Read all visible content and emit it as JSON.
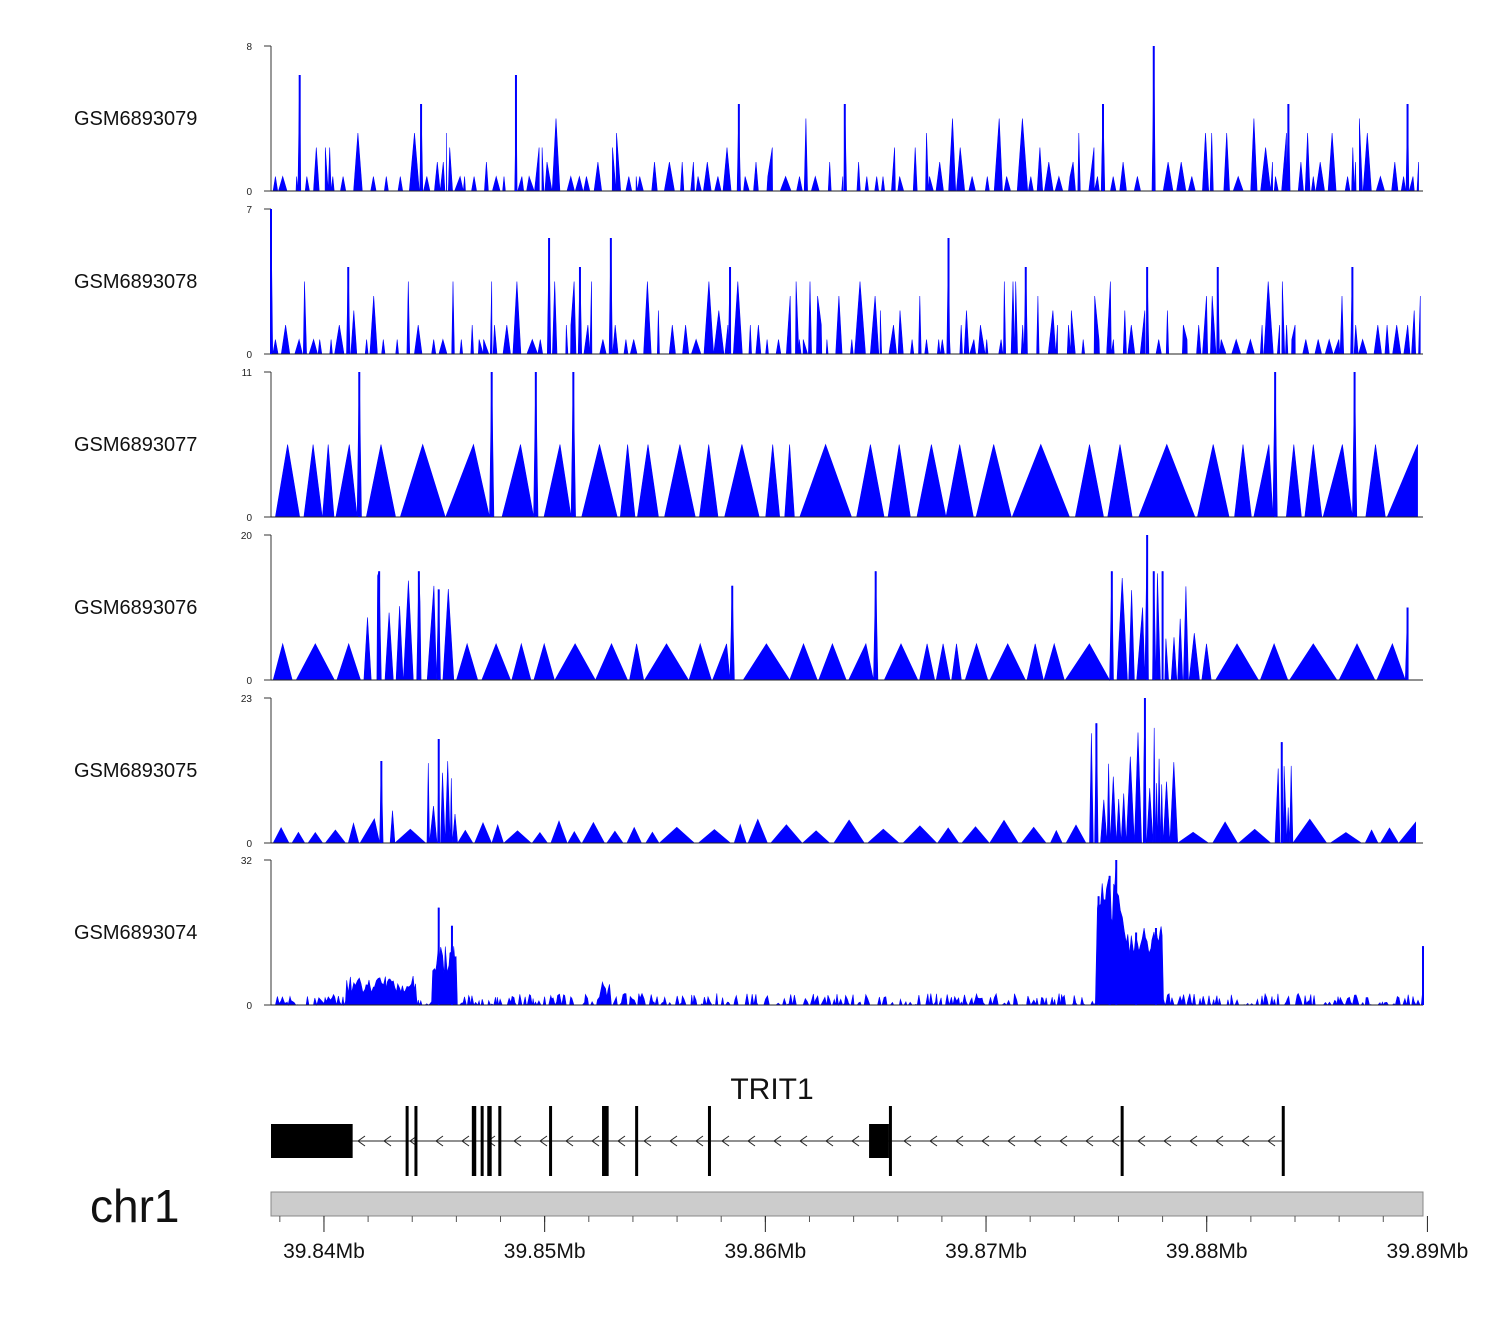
{
  "chart_data": {
    "type": "area",
    "title": "",
    "chromosome": "chr1",
    "x_range_mb": [
      39.8376,
      39.8898
    ],
    "x_ticks": [
      {
        "value": 39.84,
        "label": "39.84Mb"
      },
      {
        "value": 39.85,
        "label": "39.85Mb"
      },
      {
        "value": 39.86,
        "label": "39.86Mb"
      },
      {
        "value": 39.87,
        "label": "39.87Mb"
      },
      {
        "value": 39.88,
        "label": "39.88Mb"
      },
      {
        "value": 39.89,
        "label": "39.89Mb"
      }
    ],
    "color": "#0000ff",
    "tracks": [
      {
        "name": "GSM6893079",
        "ymax": 8,
        "ymin_label": "0",
        "ymax_label": "8",
        "style": "dense-spiky",
        "seed": 11,
        "peaks": [
          [
            39.8389,
            6.4
          ],
          [
            39.8444,
            4.8
          ],
          [
            39.8487,
            6.4
          ],
          [
            39.8588,
            4.8
          ],
          [
            39.8636,
            4.8
          ],
          [
            39.8753,
            4.8
          ],
          [
            39.8776,
            8.0
          ],
          [
            39.8837,
            4.8
          ],
          [
            39.8891,
            4.8
          ]
        ]
      },
      {
        "name": "GSM6893078",
        "ymax": 7,
        "ymin_label": "0",
        "ymax_label": "7",
        "style": "dense-spiky",
        "seed": 23,
        "peaks": [
          [
            39.8376,
            7.0
          ],
          [
            39.8411,
            4.2
          ],
          [
            39.8502,
            5.6
          ],
          [
            39.8516,
            4.2
          ],
          [
            39.853,
            5.6
          ],
          [
            39.8584,
            4.2
          ],
          [
            39.8683,
            5.6
          ],
          [
            39.8718,
            4.2
          ],
          [
            39.8773,
            4.2
          ],
          [
            39.8805,
            4.2
          ],
          [
            39.8866,
            4.2
          ]
        ]
      },
      {
        "name": "GSM6893077",
        "ymax": 11,
        "ymin_label": "0",
        "ymax_label": "11",
        "style": "sparse-triangles",
        "seed": 37,
        "peaks": [
          [
            39.8416,
            11.0
          ],
          [
            39.8476,
            11.0
          ],
          [
            39.8496,
            11.0
          ],
          [
            39.8513,
            11.0
          ],
          [
            39.8831,
            11.0
          ],
          [
            39.8867,
            11.0
          ]
        ]
      },
      {
        "name": "GSM6893076",
        "ymax": 20,
        "ymin_label": "0",
        "ymax_label": "20",
        "style": "medium-triangles",
        "seed": 51,
        "peaks": [
          [
            39.8425,
            15.0
          ],
          [
            39.8443,
            15.0
          ],
          [
            39.8452,
            12.5
          ],
          [
            39.8585,
            13.0
          ],
          [
            39.865,
            15.0
          ],
          [
            39.8757,
            15.0
          ],
          [
            39.8773,
            20.0
          ],
          [
            39.8776,
            15.0
          ],
          [
            39.878,
            15.0
          ],
          [
            39.8891,
            10.0
          ]
        ]
      },
      {
        "name": "GSM6893075",
        "ymax": 23,
        "ymin_label": "0",
        "ymax_label": "23",
        "style": "clustered",
        "seed": 67,
        "peaks": [
          [
            39.8426,
            13.0
          ],
          [
            39.8452,
            16.5
          ],
          [
            39.875,
            19.0
          ],
          [
            39.8772,
            23.0
          ],
          [
            39.8834,
            16.0
          ]
        ]
      },
      {
        "name": "GSM6893074",
        "ymax": 32,
        "ymin_label": "0",
        "ymax_label": "32",
        "style": "continuous",
        "seed": 83,
        "peaks": [
          [
            39.8452,
            21.5
          ],
          [
            39.8458,
            17.5
          ],
          [
            39.8751,
            24.0
          ],
          [
            39.8756,
            28.5
          ],
          [
            39.8759,
            32.0
          ],
          [
            39.8768,
            16.0
          ],
          [
            39.8777,
            17.0
          ],
          [
            39.8898,
            13.0
          ]
        ]
      }
    ],
    "gene": {
      "name": "TRIT1",
      "strand": "-",
      "start_mb": 39.8376,
      "end_mb": 39.8835,
      "exons_mb": [
        [
          39.8376,
          39.8413,
          "utr"
        ],
        [
          39.8437,
          39.8438,
          "cds"
        ],
        [
          39.8441,
          39.8442,
          "cds"
        ],
        [
          39.8467,
          39.8469,
          "cds"
        ],
        [
          39.8471,
          39.8472,
          "cds"
        ],
        [
          39.8474,
          39.8476,
          "cds"
        ],
        [
          39.8479,
          39.848,
          "cds"
        ],
        [
          39.8502,
          39.8503,
          "cds"
        ],
        [
          39.8526,
          39.8529,
          "cds"
        ],
        [
          39.8541,
          39.8542,
          "cds"
        ],
        [
          39.8574,
          39.8575,
          "cds"
        ],
        [
          39.8647,
          39.8656,
          "utr"
        ],
        [
          39.8656,
          39.8657,
          "cds"
        ],
        [
          39.8761,
          39.8762,
          "cds"
        ],
        [
          39.8834,
          39.8835,
          "cds"
        ]
      ]
    }
  }
}
